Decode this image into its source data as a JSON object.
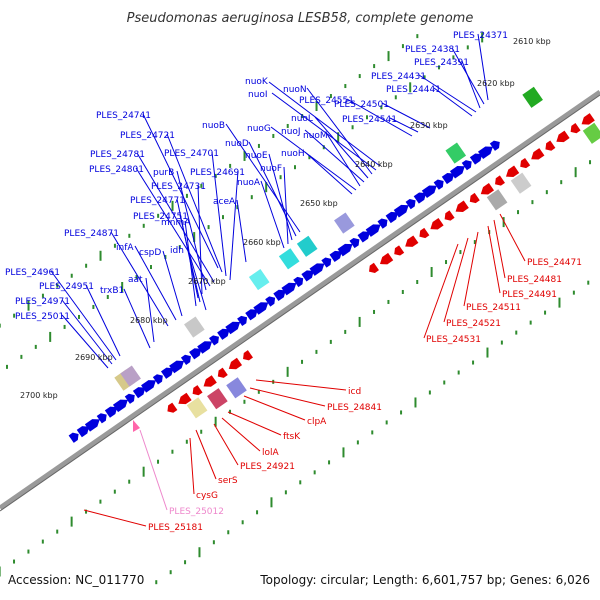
{
  "title": "Pseudomonas aeruginosa LESB58, complete genome",
  "footer": {
    "accession": "Accession: NC_011770",
    "topology": "Topology: circular; Length: 6,601,757 bp; Genes: 6,026"
  },
  "colors": {
    "forward_gene": "#0000dd",
    "reverse_gene": "#e00000",
    "rna_gene": "#ff66aa",
    "backbone": "#8a8a8a",
    "tick": "#2e8b2e"
  },
  "scale_labels": [
    "2610 kbp",
    "2620 kbp",
    "2630 kbp",
    "2640 kbp",
    "2650 kbp",
    "2660 kbp",
    "2670 kbp",
    "2680 kbp",
    "2690 kbp",
    "2700 kbp"
  ],
  "blue_labels": [
    "PLES_24371",
    "PLES_24381",
    "PLES_24391",
    "PLES_24431",
    "PLES_24441",
    "PLES_24501",
    "PLES_24541",
    "PLES_24551",
    "nuoK",
    "nuoI",
    "nuoN",
    "nuoL",
    "nuoJ",
    "nuoM",
    "nuoG",
    "nuoH",
    "nuoB",
    "nuoD",
    "nuoE",
    "nuoF",
    "nuoA",
    "PLES_24741",
    "PLES_24721",
    "PLES_24701",
    "PLES_24691",
    "PLES_24781",
    "PLES_24801",
    "purB",
    "PLES_24731",
    "PLES_24771",
    "aceA",
    "mnmA",
    "PLES_24751",
    "idh",
    "PLES_24871",
    "infA",
    "cspD",
    "aat",
    "trxB1",
    "PLES_24961",
    "PLES_24951",
    "PLES_24971",
    "PLES_25011"
  ],
  "red_labels": [
    "PLES_24471",
    "PLES_24481",
    "PLES_24491",
    "PLES_24511",
    "PLES_24521",
    "PLES_24531",
    "icd",
    "PLES_24841",
    "clpA",
    "ftsK",
    "lolA",
    "PLES_24921",
    "serS",
    "cysG",
    "PLES_25181"
  ],
  "pink_labels": [
    "PLES_25012"
  ]
}
